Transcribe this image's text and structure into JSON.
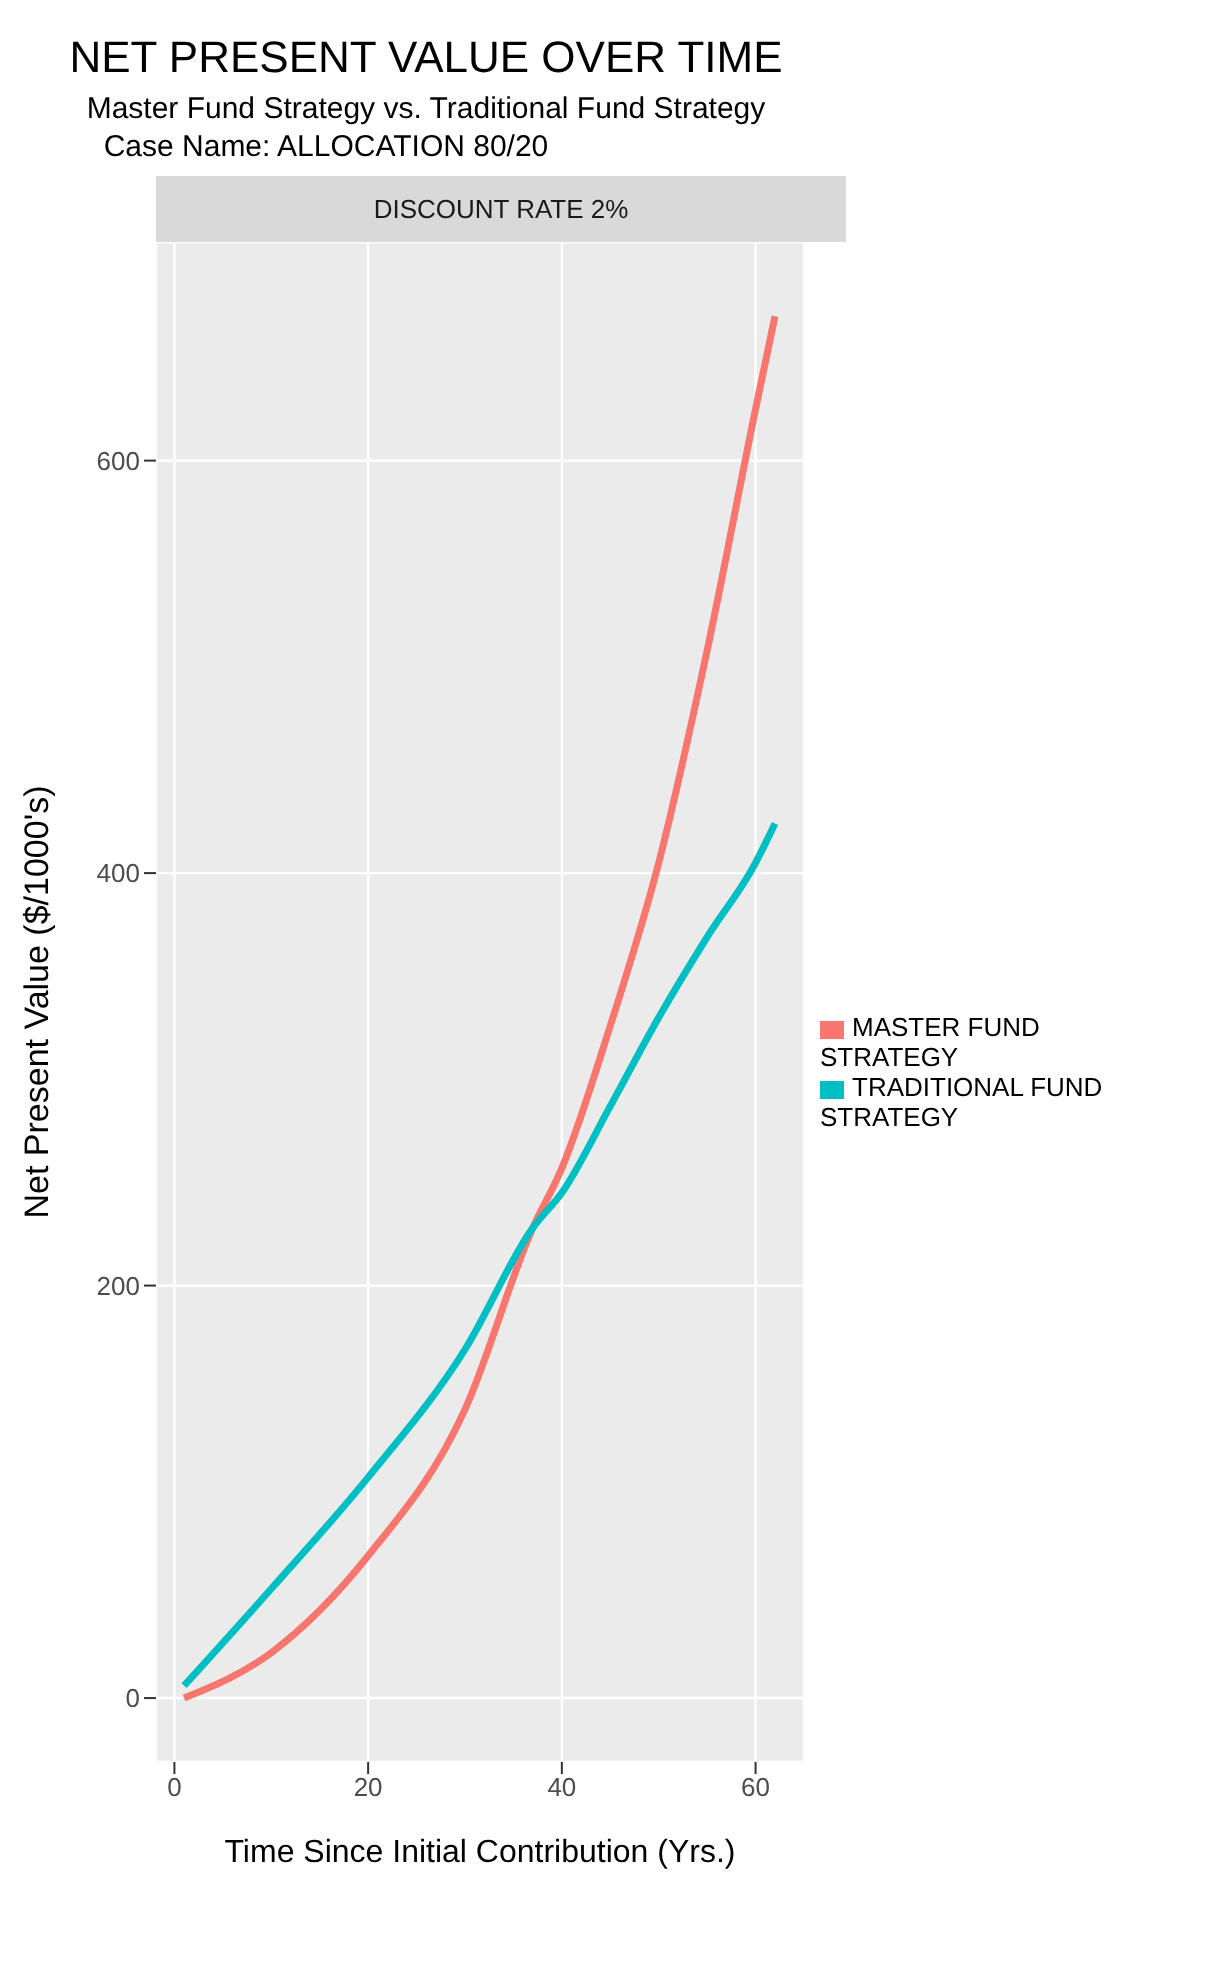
{
  "chart_data": {
    "type": "line",
    "title": "NET PRESENT VALUE OVER TIME",
    "subtitle": "Master Fund Strategy vs. Traditional Fund Strategy",
    "annotations": [
      "Case Name:  ALLOCATION 80/20",
      "DISCOUNT RATE 2%"
    ],
    "xlabel": "Time Since Initial Contribution (Yrs.)",
    "ylabel": "Net Present Value  ($/1000's)",
    "xlim": [
      -1.9,
      65
    ],
    "xticks": [
      0,
      20,
      40,
      60
    ],
    "ylim": [
      -31,
      706
    ],
    "yticks": [
      0,
      200,
      400,
      600
    ],
    "grid": true,
    "legend": "right",
    "marker": "none",
    "line_style": "solid",
    "series": [
      {
        "name": "MASTER FUND STRATEGY",
        "color": "#f8766d",
        "x": [
          1,
          10,
          20,
          30,
          37,
          40,
          45,
          50,
          55,
          60,
          62
        ],
        "values": [
          0,
          22,
          69,
          140,
          228,
          257,
          326,
          405,
          508,
          625,
          670
        ]
      },
      {
        "name": "TRADITIONAL FUND STRATEGY",
        "color": "#00bfc4",
        "x": [
          1,
          10,
          20,
          30,
          37,
          40,
          45,
          50,
          55,
          60,
          62
        ],
        "values": [
          6,
          53,
          107,
          169,
          228,
          245,
          287,
          330,
          369,
          405,
          424
        ]
      }
    ]
  }
}
